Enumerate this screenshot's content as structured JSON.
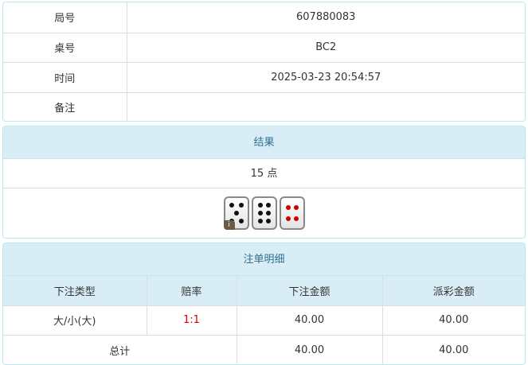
{
  "info": {
    "rows": [
      {
        "label": "局号",
        "value": "607880083"
      },
      {
        "label": "桌号",
        "value": "BC2"
      },
      {
        "label": "时间",
        "value": "2025-03-23 20:54:57"
      },
      {
        "label": "备注",
        "value": ""
      }
    ]
  },
  "result": {
    "title": "结果",
    "points": "15 点",
    "dice": [
      5,
      6,
      4
    ],
    "info_badge": "i"
  },
  "bets": {
    "title": "注单明细",
    "columns": [
      "下注类型",
      "赔率",
      "下注金额",
      "派彩金额"
    ],
    "rows": [
      {
        "type": "大/小(大)",
        "odds": "1:1",
        "amount": "40.00",
        "payout": "40.00"
      }
    ],
    "total": {
      "label": "总计",
      "amount": "40.00",
      "payout": "40.00"
    }
  },
  "colors": {
    "header_bg": "#d9edf7",
    "header_text": "#31708f",
    "odds": "#e00000"
  }
}
